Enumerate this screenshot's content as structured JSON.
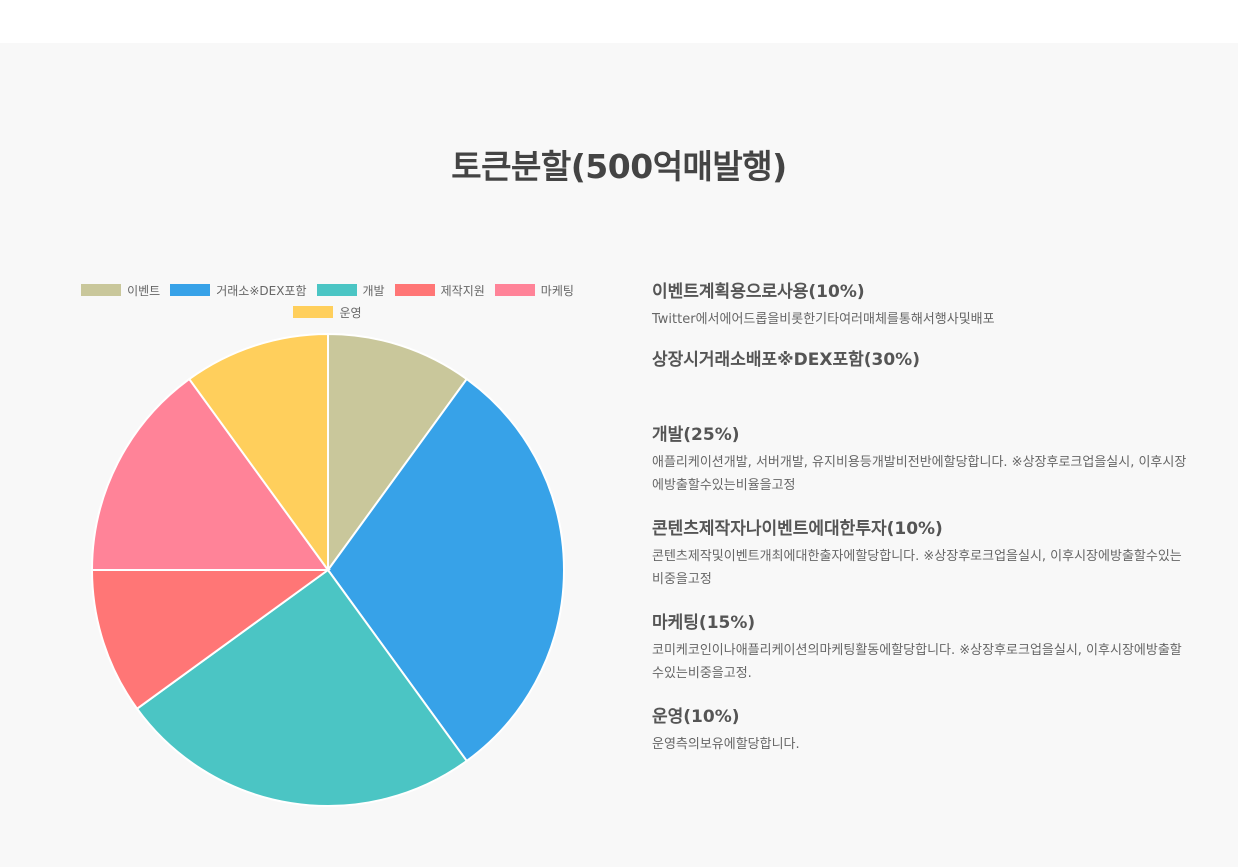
{
  "chart_data": {
    "type": "pie",
    "title": "토큰분할(500억매발행)",
    "legend_position": "top",
    "categories": [
      "이벤트",
      "거래소※DEX포함",
      "개발",
      "제작지원",
      "마케팅",
      "운영"
    ],
    "values": [
      10,
      30,
      25,
      10,
      15,
      10
    ],
    "colors": [
      "#c9c79b",
      "#37a2e8",
      "#4bc5c4",
      "#ff7676",
      "#ff8398",
      "#ffcf5c"
    ]
  },
  "info": [
    {
      "title": "이벤트계획용으로사용(10%)",
      "desc": "Twitter에서에어드롭을비롯한기타여러매체를통해서행사및배포"
    },
    {
      "title": "상장시거래소배포※DEX포함(30%)",
      "desc": ""
    },
    {
      "title": "개발(25%)",
      "desc": "애플리케이션개발, 서버개발, 유지비용등개발비전반에할당합니다. ※상장후로크업을실시, 이후시장에방출할수있는비율을고정"
    },
    {
      "title": "콘텐츠제작자나이벤트에대한투자(10%)",
      "desc": "콘텐츠제작및이벤트개최에대한출자에할당합니다. ※상장후로크업을실시, 이후시장에방출할수있는비중을고정"
    },
    {
      "title": "마케팅(15%)",
      "desc": "코미케코인이나애플리케이션의마케팅활동에할당합니다. ※상장후로크업을실시, 이후시장에방출할수있는비중을고정."
    },
    {
      "title": "운영(10%)",
      "desc": "운영측의보유에할당합니다."
    }
  ]
}
